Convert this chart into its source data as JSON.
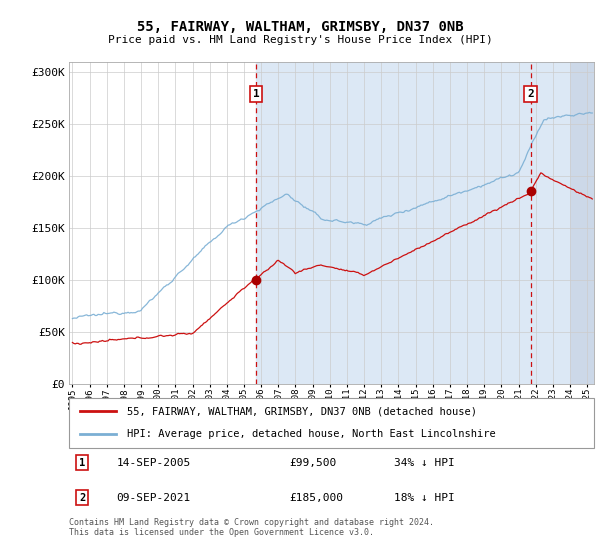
{
  "title": "55, FAIRWAY, WALTHAM, GRIMSBY, DN37 0NB",
  "subtitle": "Price paid vs. HM Land Registry's House Price Index (HPI)",
  "background_color": "#dce8f5",
  "plot_bg_color_left": "#e8eef5",
  "plot_bg_color_right": "#dce8f5",
  "red_line_label": "55, FAIRWAY, WALTHAM, GRIMSBY, DN37 0NB (detached house)",
  "blue_line_label": "HPI: Average price, detached house, North East Lincolnshire",
  "sale1_date": "14-SEP-2005",
  "sale1_price": "£99,500",
  "sale1_note": "34% ↓ HPI",
  "sale2_date": "09-SEP-2021",
  "sale2_price": "£185,000",
  "sale2_note": "18% ↓ HPI",
  "footer": "Contains HM Land Registry data © Crown copyright and database right 2024.\nThis data is licensed under the Open Government Licence v3.0.",
  "ylim": [
    0,
    310000
  ],
  "yticks": [
    0,
    50000,
    100000,
    150000,
    200000,
    250000,
    300000
  ],
  "ytick_labels": [
    "£0",
    "£50K",
    "£100K",
    "£150K",
    "£200K",
    "£250K",
    "£300K"
  ],
  "sale1_year": 2005.7,
  "sale1_price_val": 99500,
  "sale2_year": 2021.7,
  "sale2_price_val": 185000,
  "xlim_start": 1994.8,
  "xlim_end": 2025.4,
  "hatch_start": 2024.0
}
